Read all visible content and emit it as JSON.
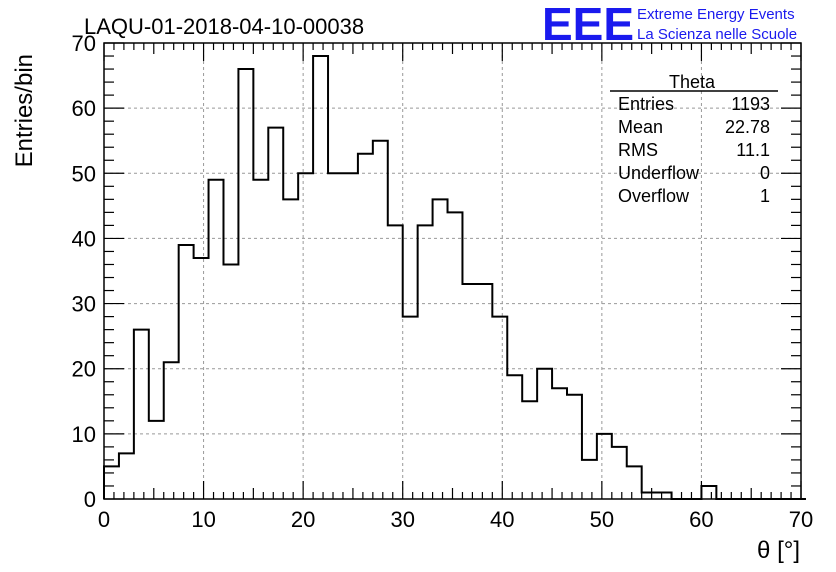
{
  "chart_data": {
    "type": "histogram",
    "title": "LAQU-01-2018-04-10-00038",
    "xlabel": "θ [°]",
    "ylabel": "Entries/bin",
    "xlim": [
      0,
      70
    ],
    "ylim": [
      0,
      70
    ],
    "grid": true,
    "bin_width": 1.5,
    "xticks": [
      "0",
      "10",
      "20",
      "30",
      "40",
      "50",
      "60",
      "70"
    ],
    "yticks": [
      "0",
      "10",
      "20",
      "30",
      "40",
      "50",
      "60",
      "70"
    ],
    "counts": [
      5,
      7,
      26,
      12,
      21,
      39,
      37,
      49,
      36,
      66,
      49,
      57,
      46,
      50,
      68,
      50,
      50,
      53,
      55,
      42,
      28,
      42,
      46,
      44,
      33,
      33,
      28,
      19,
      15,
      20,
      17,
      16,
      6,
      10,
      8,
      5,
      1,
      1,
      0,
      0,
      2,
      0,
      0,
      0,
      0,
      0,
      0
    ],
    "stats": {
      "name": "Theta",
      "rows": [
        {
          "label": "Entries",
          "value": "1193"
        },
        {
          "label": "Mean",
          "value": "22.78"
        },
        {
          "label": "RMS",
          "value": "11.1"
        },
        {
          "label": "Underflow",
          "value": "0"
        },
        {
          "label": "Overflow",
          "value": "1"
        }
      ]
    }
  },
  "logo": {
    "mark": "EEE",
    "line1": "Extreme Energy Events",
    "line2": "La Scienza nelle Scuole",
    "color": "#1a1aee"
  }
}
